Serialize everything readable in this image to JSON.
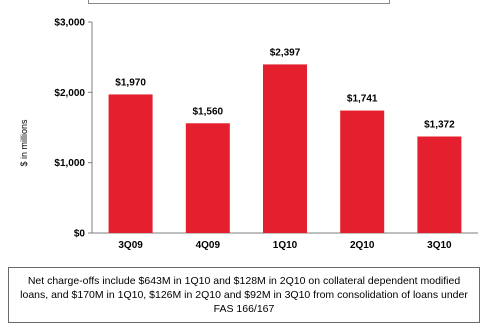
{
  "chart_data": {
    "type": "bar",
    "categories": [
      "3Q09",
      "4Q09",
      "1Q10",
      "2Q10",
      "3Q10"
    ],
    "values": [
      1970,
      1560,
      2397,
      1741,
      1372
    ],
    "data_labels": [
      "$1,970",
      "$1,560",
      "$2,397",
      "$1,741",
      "$1,372"
    ],
    "ylabel": "$ in millions",
    "ylim": [
      0,
      3000
    ],
    "yticks": [
      0,
      1000,
      2000,
      3000
    ],
    "ytick_labels": [
      "$0",
      "$1,000",
      "$2,000",
      "$3,000"
    ],
    "bar_color": "#e4202e",
    "grid": false,
    "legend": "none"
  },
  "note": {
    "text": "Net charge-offs include $643M in 1Q10 and $128M in 2Q10 on collateral dependent modified loans, and $170M in 1Q10, $126M in 2Q10 and $92M in 3Q10 from consolidation of loans under FAS 166/167"
  }
}
